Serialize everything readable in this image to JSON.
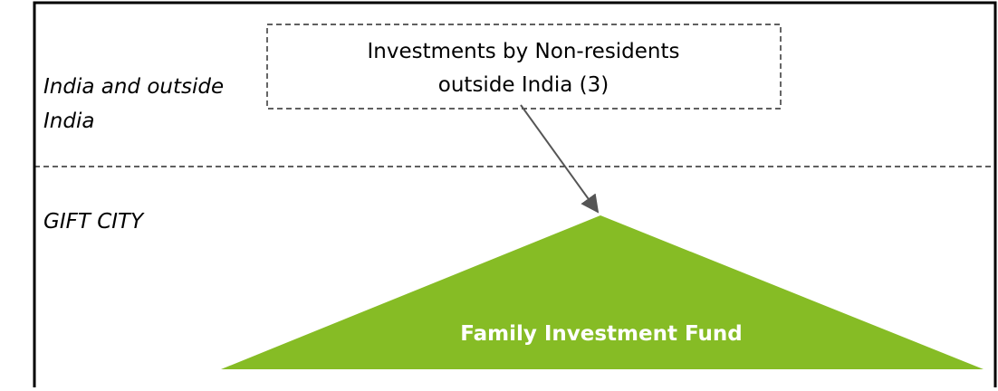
{
  "regions": {
    "upper": "India and outside India",
    "lower": "GIFT CITY"
  },
  "nodes": [
    {
      "label_lines": [
        "Investments by Non-residents",
        "outside India (3)"
      ]
    },
    {
      "label": "Family Investment Fund"
    }
  ]
}
